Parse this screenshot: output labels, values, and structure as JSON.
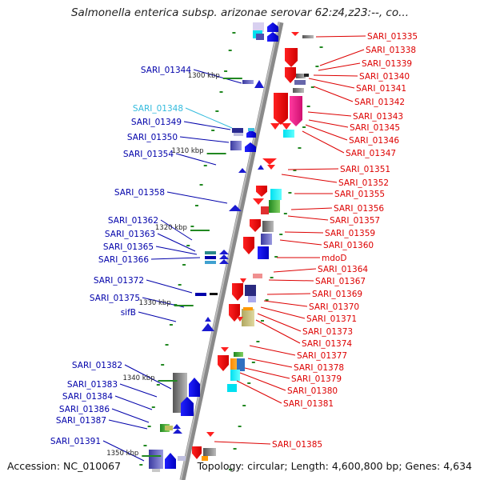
{
  "title": "Salmonella enterica subsp. arizonae serovar 62:z4,z23:--, co...",
  "footer": {
    "accession": "Accession: NC_010067",
    "topology": "Topology: circular; Length: 4,600,800 bp; Genes: 4,634"
  },
  "colors": {
    "right_label": "#dd0000",
    "left_label": "#0000aa",
    "highlight_label": "#33bbdd",
    "axis": "#888888",
    "tick": "#228822"
  },
  "scale_marks": [
    {
      "label": "1300 kbp"
    },
    {
      "label": "1310 kbp"
    },
    {
      "label": "1320 kbp"
    },
    {
      "label": "1330 kbp"
    },
    {
      "label": "1340 kbp"
    },
    {
      "label": "1350 kbp"
    }
  ],
  "right_genes": [
    {
      "name": "SARI_01335"
    },
    {
      "name": "SARI_01338"
    },
    {
      "name": "SARI_01339"
    },
    {
      "name": "SARI_01340"
    },
    {
      "name": "SARI_01341"
    },
    {
      "name": "SARI_01342"
    },
    {
      "name": "SARI_01343"
    },
    {
      "name": "SARI_01345"
    },
    {
      "name": "SARI_01346"
    },
    {
      "name": "SARI_01347"
    },
    {
      "name": "SARI_01351"
    },
    {
      "name": "SARI_01352"
    },
    {
      "name": "SARI_01355"
    },
    {
      "name": "SARI_01356"
    },
    {
      "name": "SARI_01357"
    },
    {
      "name": "SARI_01359"
    },
    {
      "name": "SARI_01360"
    },
    {
      "name": "mdoD"
    },
    {
      "name": "SARI_01364"
    },
    {
      "name": "SARI_01367"
    },
    {
      "name": "SARI_01369"
    },
    {
      "name": "SARI_01370"
    },
    {
      "name": "SARI_01371"
    },
    {
      "name": "SARI_01373"
    },
    {
      "name": "SARI_01374"
    },
    {
      "name": "SARI_01377"
    },
    {
      "name": "SARI_01378"
    },
    {
      "name": "SARI_01379"
    },
    {
      "name": "SARI_01380"
    },
    {
      "name": "SARI_01381"
    },
    {
      "name": "SARI_01385"
    }
  ],
  "left_genes": [
    {
      "name": "SARI_01344",
      "highlight": false
    },
    {
      "name": "SARI_01348",
      "highlight": true
    },
    {
      "name": "SARI_01349",
      "highlight": false
    },
    {
      "name": "SARI_01350",
      "highlight": false
    },
    {
      "name": "SARI_01354",
      "highlight": false
    },
    {
      "name": "SARI_01358",
      "highlight": false
    },
    {
      "name": "SARI_01362",
      "highlight": false
    },
    {
      "name": "SARI_01363",
      "highlight": false
    },
    {
      "name": "SARI_01365",
      "highlight": false
    },
    {
      "name": "SARI_01366",
      "highlight": false
    },
    {
      "name": "SARI_01372",
      "highlight": false
    },
    {
      "name": "SARI_01375",
      "highlight": false
    },
    {
      "name": "sifB",
      "highlight": false
    },
    {
      "name": "SARI_01382",
      "highlight": false
    },
    {
      "name": "SARI_01383",
      "highlight": false
    },
    {
      "name": "SARI_01384",
      "highlight": false
    },
    {
      "name": "SARI_01386",
      "highlight": false
    },
    {
      "name": "SARI_01387",
      "highlight": false
    },
    {
      "name": "SARI_01391",
      "highlight": false
    }
  ]
}
